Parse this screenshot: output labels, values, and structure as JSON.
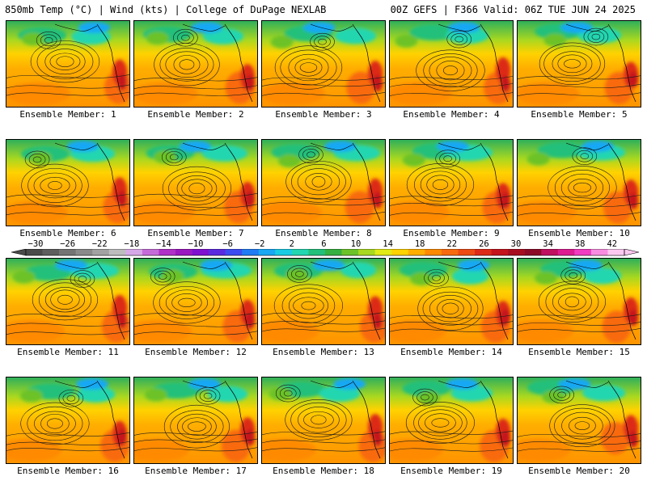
{
  "header": {
    "title_left": "850mb Temp (°C) | Wind (kts) | College of DuPage NEXLAB",
    "title_right": "00Z GEFS | F366 Valid: 06Z TUE JUN 24 2025"
  },
  "members": [
    "Ensemble Member: 1",
    "Ensemble Member: 2",
    "Ensemble Member: 3",
    "Ensemble Member: 4",
    "Ensemble Member: 5",
    "Ensemble Member: 6",
    "Ensemble Member: 7",
    "Ensemble Member: 8",
    "Ensemble Member: 9",
    "Ensemble Member: 10",
    "Ensemble Member: 11",
    "Ensemble Member: 12",
    "Ensemble Member: 13",
    "Ensemble Member: 14",
    "Ensemble Member: 15",
    "Ensemble Member: 16",
    "Ensemble Member: 17",
    "Ensemble Member: 18",
    "Ensemble Member: 19",
    "Ensemble Member: 20"
  ],
  "colorbar": {
    "labels": [
      "−30",
      "−26",
      "−22",
      "−18",
      "−14",
      "−10",
      "−6",
      "−2",
      "2",
      "6",
      "10",
      "14",
      "18",
      "22",
      "26",
      "30",
      "34",
      "38",
      "42"
    ],
    "colors": [
      "#4a4a4a",
      "#5e5e5e",
      "#747474",
      "#8a8a8a",
      "#a2a2a2",
      "#bdbdbd",
      "#d7a8e8",
      "#c56bd8",
      "#b030c8",
      "#9a18c0",
      "#7f10d0",
      "#5a2ae0",
      "#3c4cf0",
      "#1f7cf4",
      "#18a8f4",
      "#18cce4",
      "#22d6b0",
      "#22c07a",
      "#36b040",
      "#6cc228",
      "#a8d820",
      "#e2ea18",
      "#ffd200",
      "#ffae00",
      "#ff8a00",
      "#f86a10",
      "#ee4a14",
      "#dc2a18",
      "#c4141c",
      "#a80c20",
      "#8c0a28",
      "#c01060",
      "#dc1c90",
      "#f03cc0",
      "#f88ce0",
      "#fcc8f0"
    ]
  }
}
